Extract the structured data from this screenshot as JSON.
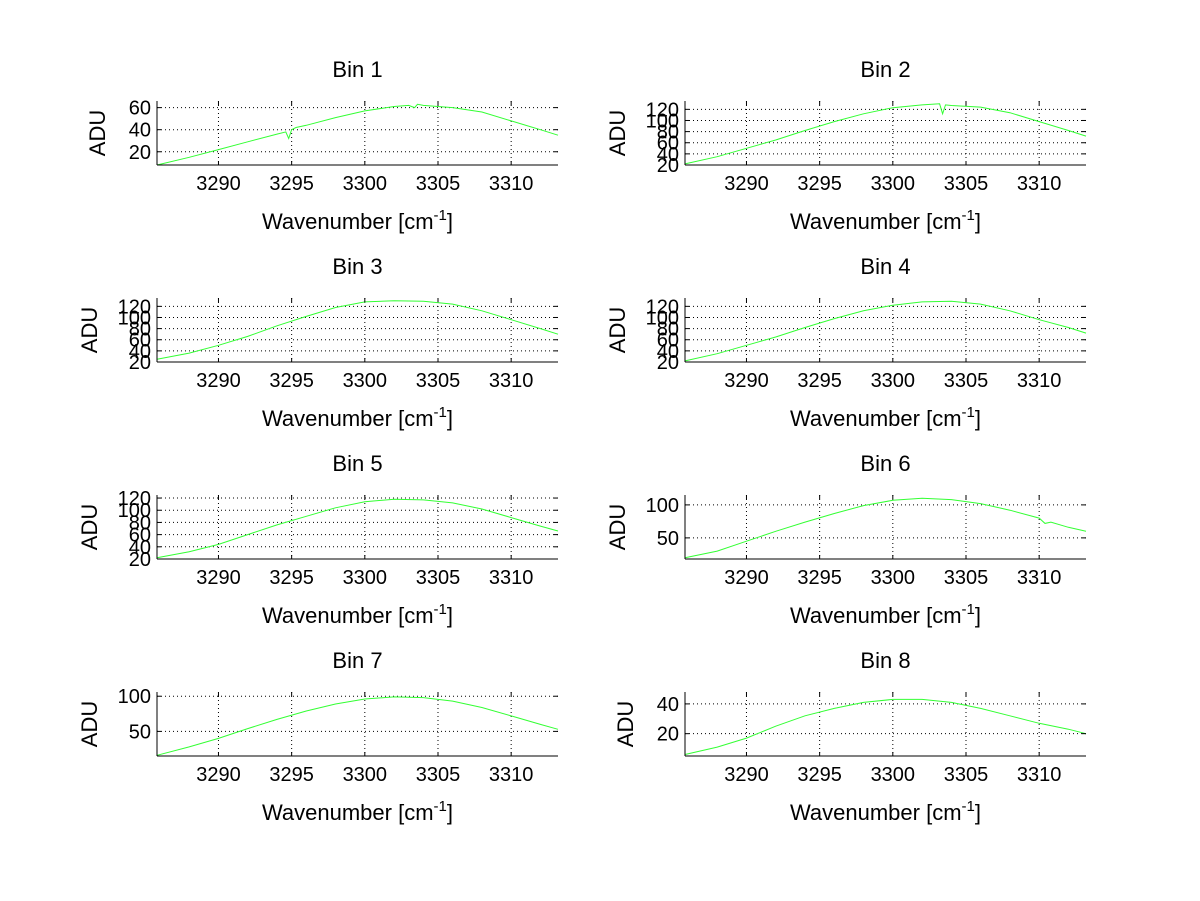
{
  "chart_data": [
    {
      "type": "line",
      "title": "Bin 1",
      "xlabel": "Wavenumber [cm",
      "xlabel_sup": "-1",
      "xlabel_suffix": "]",
      "ylabel": "ADU",
      "xlim": [
        3285.8,
        3313.2
      ],
      "ylim": [
        8,
        66
      ],
      "xticks": [
        3290,
        3295,
        3300,
        3305,
        3310
      ],
      "yticks": [
        20,
        40,
        60
      ],
      "grid": true,
      "color": "#33ff33",
      "series": [
        {
          "x": [
            3285.8,
            3288,
            3290,
            3292,
            3294,
            3294.6,
            3294.8,
            3295.0,
            3295.3,
            3296,
            3298,
            3300,
            3302,
            3303,
            3303.4,
            3303.6,
            3304,
            3306,
            3308,
            3310,
            3312,
            3313.2
          ],
          "y": [
            8,
            15,
            22,
            29,
            36,
            38,
            32,
            40,
            42,
            44,
            51,
            57,
            61,
            62,
            60,
            63,
            62,
            60,
            56,
            48,
            40,
            35
          ]
        }
      ]
    },
    {
      "type": "line",
      "title": "Bin 2",
      "xlabel": "Wavenumber [cm",
      "xlabel_sup": "-1",
      "xlabel_suffix": "]",
      "ylabel": "ADU",
      "xlim": [
        3285.8,
        3313.2
      ],
      "ylim": [
        20,
        135
      ],
      "xticks": [
        3290,
        3295,
        3300,
        3305,
        3310
      ],
      "yticks": [
        20,
        40,
        60,
        80,
        100,
        120
      ],
      "ytick_labels": [
        "20",
        "40",
        "60",
        "80",
        "100",
        "120"
      ],
      "grid": true,
      "color": "#33ff33",
      "series": [
        {
          "x": [
            3285.8,
            3288,
            3290,
            3292,
            3294,
            3296,
            3298,
            3300,
            3302,
            3303.2,
            3303.4,
            3303.6,
            3304,
            3306,
            3308,
            3310,
            3312,
            3313.2
          ],
          "y": [
            22,
            35,
            50,
            65,
            82,
            98,
            112,
            123,
            128,
            130,
            112,
            128,
            127,
            124,
            114,
            98,
            82,
            72
          ]
        }
      ]
    },
    {
      "type": "line",
      "title": "Bin 3",
      "xlabel": "Wavenumber [cm",
      "xlabel_sup": "-1",
      "xlabel_suffix": "]",
      "ylabel": "ADU",
      "xlim": [
        3285.8,
        3313.2
      ],
      "ylim": [
        20,
        135
      ],
      "xticks": [
        3290,
        3295,
        3300,
        3305,
        3310
      ],
      "yticks": [
        20,
        40,
        60,
        80,
        100,
        120
      ],
      "ytick_labels": [
        "20",
        "40",
        "60",
        "80",
        "100",
        "120"
      ],
      "grid": true,
      "color": "#33ff33",
      "series": [
        {
          "x": [
            3285.8,
            3288,
            3290,
            3292,
            3294,
            3296,
            3298,
            3300,
            3302,
            3304,
            3306,
            3308,
            3310,
            3312,
            3313.2
          ],
          "y": [
            25,
            36,
            50,
            66,
            85,
            102,
            118,
            128,
            130,
            129,
            124,
            112,
            96,
            80,
            70
          ]
        }
      ]
    },
    {
      "type": "line",
      "title": "Bin 4",
      "xlabel": "Wavenumber [cm",
      "xlabel_sup": "-1",
      "xlabel_suffix": "]",
      "ylabel": "ADU",
      "xlim": [
        3285.8,
        3313.2
      ],
      "ylim": [
        20,
        135
      ],
      "xticks": [
        3290,
        3295,
        3300,
        3305,
        3310
      ],
      "yticks": [
        20,
        40,
        60,
        80,
        100,
        120
      ],
      "ytick_labels": [
        "20",
        "40",
        "60",
        "80",
        "100",
        "120"
      ],
      "grid": true,
      "color": "#33ff33",
      "series": [
        {
          "x": [
            3285.8,
            3288,
            3290,
            3292,
            3294,
            3296,
            3298,
            3300,
            3302,
            3304,
            3306,
            3308,
            3310,
            3312,
            3313.2
          ],
          "y": [
            22,
            35,
            50,
            65,
            82,
            98,
            112,
            122,
            128,
            129,
            124,
            112,
            96,
            82,
            72
          ]
        }
      ]
    },
    {
      "type": "line",
      "title": "Bin 5",
      "xlabel": "Wavenumber [cm",
      "xlabel_sup": "-1",
      "xlabel_suffix": "]",
      "ylabel": "ADU",
      "xlim": [
        3285.8,
        3313.2
      ],
      "ylim": [
        20,
        125
      ],
      "xticks": [
        3290,
        3295,
        3300,
        3305,
        3310
      ],
      "yticks": [
        20,
        40,
        60,
        80,
        100,
        120
      ],
      "ytick_labels": [
        "20",
        "40",
        "60",
        "80",
        "100",
        "120"
      ],
      "grid": true,
      "color": "#33ff33",
      "series": [
        {
          "x": [
            3285.8,
            3288,
            3290,
            3292,
            3294,
            3296,
            3298,
            3300,
            3302,
            3304,
            3306,
            3308,
            3310,
            3312,
            3313.2
          ],
          "y": [
            22,
            32,
            44,
            60,
            76,
            90,
            104,
            114,
            118,
            117,
            112,
            102,
            88,
            74,
            66
          ]
        }
      ]
    },
    {
      "type": "line",
      "title": "Bin 6",
      "xlabel": "Wavenumber [cm",
      "xlabel_sup": "-1",
      "xlabel_suffix": "]",
      "ylabel": "ADU",
      "xlim": [
        3285.8,
        3313.2
      ],
      "ylim": [
        18,
        115
      ],
      "xticks": [
        3290,
        3295,
        3300,
        3305,
        3310
      ],
      "yticks": [
        50,
        100
      ],
      "grid": true,
      "color": "#33ff33",
      "series": [
        {
          "x": [
            3285.8,
            3288,
            3290,
            3292,
            3294,
            3296,
            3298,
            3300,
            3302,
            3304,
            3306,
            3308,
            3310,
            3310.4,
            3310.8,
            3312,
            3313.2
          ],
          "y": [
            20,
            30,
            45,
            60,
            74,
            87,
            99,
            107,
            110,
            108,
            102,
            92,
            80,
            72,
            74,
            66,
            60
          ]
        }
      ]
    },
    {
      "type": "line",
      "title": "Bin 7",
      "xlabel": "Wavenumber [cm",
      "xlabel_sup": "-1",
      "xlabel_suffix": "]",
      "ylabel": "ADU",
      "xlim": [
        3285.8,
        3313.2
      ],
      "ylim": [
        15,
        106
      ],
      "xticks": [
        3290,
        3295,
        3300,
        3305,
        3310
      ],
      "yticks": [
        50,
        100
      ],
      "grid": true,
      "color": "#33ff33",
      "series": [
        {
          "x": [
            3285.8,
            3288,
            3290,
            3292,
            3294,
            3296,
            3298,
            3300,
            3302,
            3304,
            3306,
            3308,
            3310,
            3312,
            3313.2
          ],
          "y": [
            16,
            28,
            40,
            54,
            67,
            79,
            89,
            96,
            99,
            98,
            93,
            84,
            72,
            60,
            53
          ]
        }
      ]
    },
    {
      "type": "line",
      "title": "Bin 8",
      "xlabel": "Wavenumber [cm",
      "xlabel_sup": "-1",
      "xlabel_suffix": "]",
      "ylabel": "ADU",
      "xlim": [
        3285.8,
        3313.2
      ],
      "ylim": [
        5,
        48
      ],
      "xticks": [
        3290,
        3295,
        3300,
        3305,
        3310
      ],
      "yticks": [
        20,
        40
      ],
      "grid": true,
      "color": "#33ff33",
      "series": [
        {
          "x": [
            3285.8,
            3288,
            3290,
            3292,
            3294,
            3296,
            3298,
            3300,
            3302,
            3304,
            3306,
            3308,
            3310,
            3312,
            3313.2
          ],
          "y": [
            6,
            11,
            17,
            25,
            32,
            37,
            41,
            43,
            43,
            41,
            37,
            32,
            27,
            23,
            20
          ]
        }
      ]
    }
  ]
}
